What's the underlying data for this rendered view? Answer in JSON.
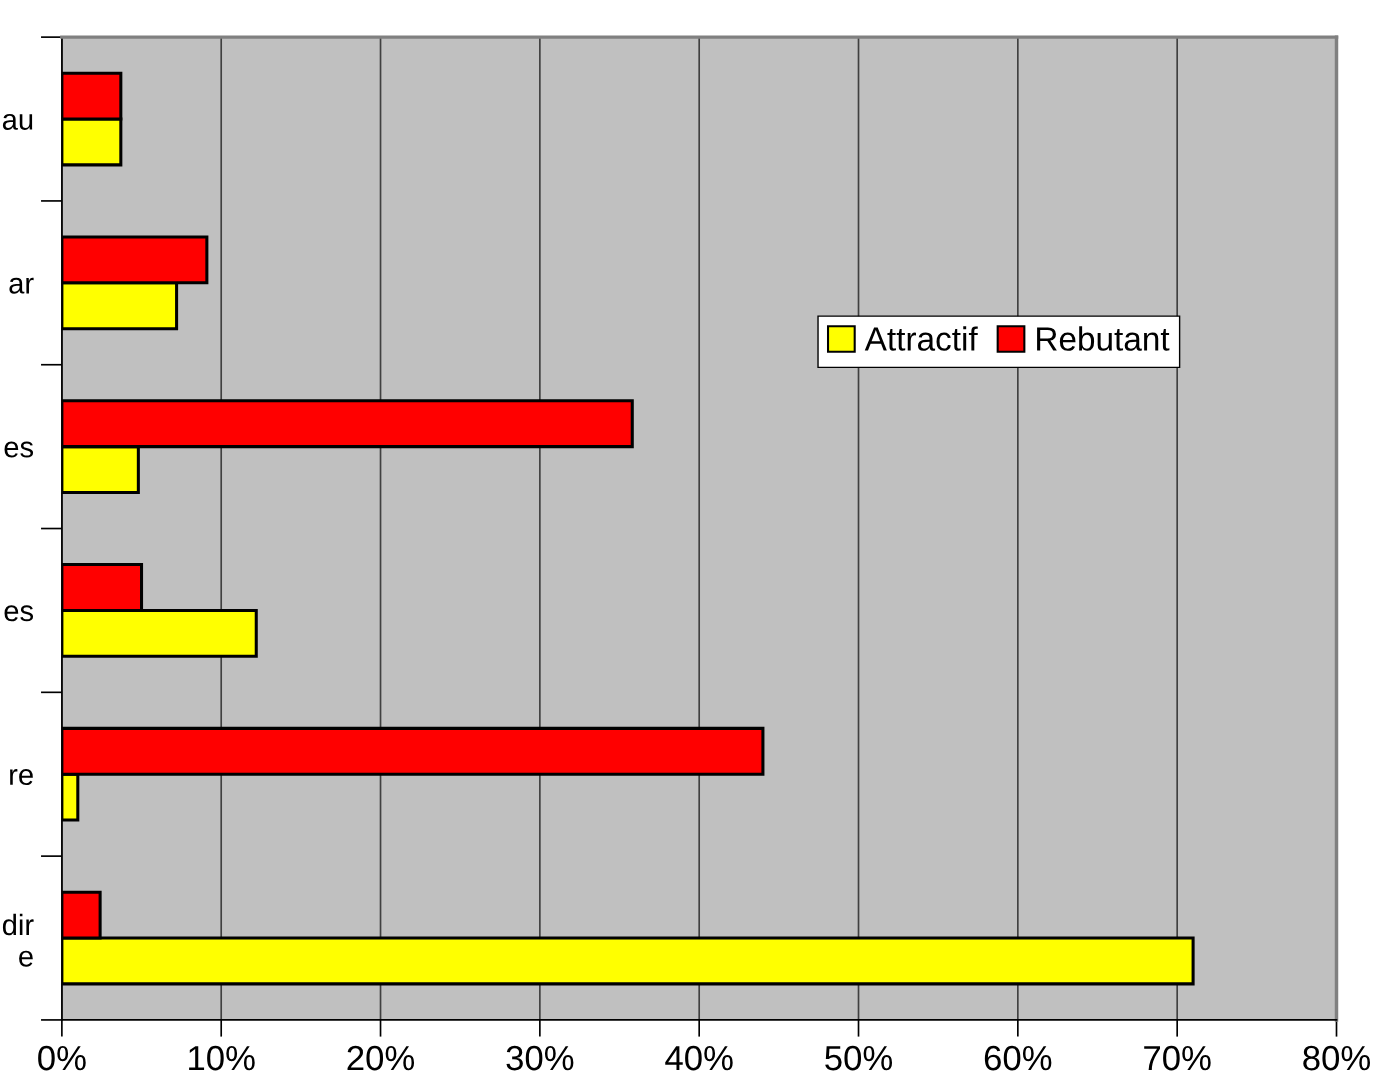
{
  "chart_data": {
    "type": "bar",
    "orientation": "horizontal",
    "categories": [
      "au",
      "ar",
      "es",
      "es",
      "re",
      "dir\ne"
    ],
    "series": [
      {
        "name": "Attractif",
        "color": "#ffff00",
        "values": [
          3.7,
          7.2,
          4.8,
          12.2,
          1.0,
          71.0
        ]
      },
      {
        "name": "Rebutant",
        "color": "#ff0000",
        "values": [
          3.7,
          9.1,
          35.8,
          5.0,
          44.0,
          2.4
        ]
      }
    ],
    "xlim": [
      0,
      80
    ],
    "xticks": [
      {
        "value": 0,
        "label": "0%"
      },
      {
        "value": 10,
        "label": "10%"
      },
      {
        "value": 20,
        "label": "20%"
      },
      {
        "value": 30,
        "label": "30%"
      },
      {
        "value": 40,
        "label": "40%"
      },
      {
        "value": 50,
        "label": "50%"
      },
      {
        "value": 60,
        "label": "60%"
      },
      {
        "value": 70,
        "label": "70%"
      },
      {
        "value": 80,
        "label": "80%"
      }
    ],
    "grid": "x",
    "legend": "right"
  }
}
